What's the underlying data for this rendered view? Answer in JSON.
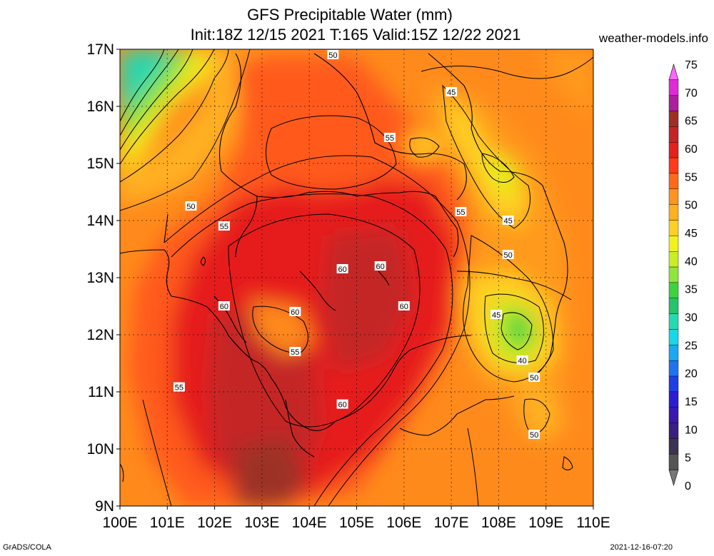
{
  "title": {
    "line1": "GFS Precipitable Water (mm)",
    "line2": "Init:18Z 12/15 2021 T:165 Valid:15Z 12/22 2021"
  },
  "site": "weather-models.info",
  "lat_labels": [
    "17N",
    "16N",
    "15N",
    "14N",
    "13N",
    "12N",
    "11N",
    "10N",
    "9N"
  ],
  "lon_labels": [
    "100E",
    "101E",
    "102E",
    "103E",
    "104E",
    "105E",
    "106E",
    "107E",
    "108E",
    "109E",
    "110E"
  ],
  "contour_labels": [
    {
      "text": "50",
      "lon": 104.5,
      "lat": 16.9
    },
    {
      "text": "45",
      "lon": 107.0,
      "lat": 16.25
    },
    {
      "text": "55",
      "lon": 105.7,
      "lat": 15.45
    },
    {
      "text": "50",
      "lon": 101.5,
      "lat": 14.25
    },
    {
      "text": "55",
      "lon": 102.2,
      "lat": 13.9
    },
    {
      "text": "55",
      "lon": 107.2,
      "lat": 14.15
    },
    {
      "text": "45",
      "lon": 108.2,
      "lat": 14.0
    },
    {
      "text": "50",
      "lon": 108.2,
      "lat": 13.4
    },
    {
      "text": "60",
      "lon": 104.7,
      "lat": 13.15
    },
    {
      "text": "60",
      "lon": 105.5,
      "lat": 13.2
    },
    {
      "text": "60",
      "lon": 102.2,
      "lat": 12.5
    },
    {
      "text": "60",
      "lon": 103.7,
      "lat": 12.4
    },
    {
      "text": "60",
      "lon": 106.0,
      "lat": 12.5
    },
    {
      "text": "45",
      "lon": 107.95,
      "lat": 12.35
    },
    {
      "text": "55",
      "lon": 103.7,
      "lat": 11.7
    },
    {
      "text": "40",
      "lon": 108.5,
      "lat": 11.55
    },
    {
      "text": "50",
      "lon": 108.75,
      "lat": 11.25
    },
    {
      "text": "55",
      "lon": 101.25,
      "lat": 11.08
    },
    {
      "text": "60",
      "lon": 104.7,
      "lat": 10.78
    },
    {
      "text": "50",
      "lon": 108.75,
      "lat": 10.25
    }
  ],
  "colorbar": {
    "labels": [
      "75",
      "70",
      "65",
      "60",
      "55",
      "50",
      "45",
      "40",
      "35",
      "30",
      "25",
      "20",
      "15",
      "10",
      "5",
      "0"
    ],
    "colors": [
      "#ff66ff",
      "#e02ad8",
      "#ad1f9c",
      "#9c3025",
      "#c42528",
      "#e61f1f",
      "#ff3b1a",
      "#ff6a1a",
      "#ff931f",
      "#ffb020",
      "#ffcf25",
      "#f2f21a",
      "#c8ee24",
      "#8ee63a",
      "#3fd23f",
      "#25c46a",
      "#27d9b0",
      "#18d7e6",
      "#1aa8f2",
      "#1f73f0",
      "#1f3fe6",
      "#2a1ed4",
      "#3a18b0",
      "#3b1f80",
      "#3e3255",
      "#555555",
      "#777777"
    ]
  },
  "footer_left": "GrADS/COLA",
  "footer_right": "2021-12-16-07:20"
}
